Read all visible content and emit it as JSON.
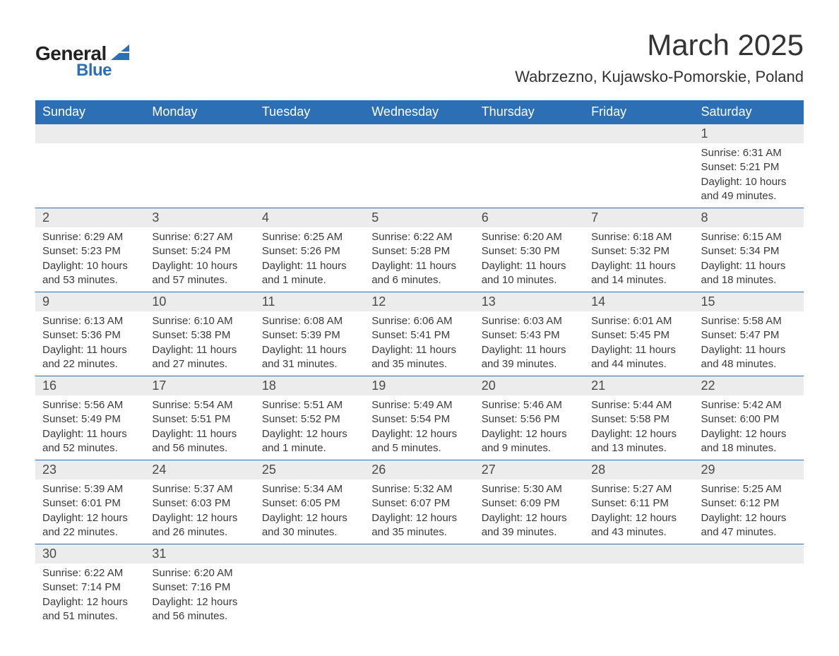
{
  "logo": {
    "text1": "General",
    "text2": "Blue",
    "accent_color": "#2d6fb5"
  },
  "title": "March 2025",
  "location": "Wabrzezno, Kujawsko-Pomorskie, Poland",
  "colors": {
    "header_bg": "#2d6fb5",
    "header_fg": "#ffffff",
    "daynum_bg": "#ececec",
    "row_border": "#2d6fb5",
    "text": "#3a3a3a"
  },
  "weekdays": [
    "Sunday",
    "Monday",
    "Tuesday",
    "Wednesday",
    "Thursday",
    "Friday",
    "Saturday"
  ],
  "weeks": [
    [
      {
        "empty": true
      },
      {
        "empty": true
      },
      {
        "empty": true
      },
      {
        "empty": true
      },
      {
        "empty": true
      },
      {
        "empty": true
      },
      {
        "day": "1",
        "sunrise": "Sunrise: 6:31 AM",
        "sunset": "Sunset: 5:21 PM",
        "daylight": "Daylight: 10 hours and 49 minutes."
      }
    ],
    [
      {
        "day": "2",
        "sunrise": "Sunrise: 6:29 AM",
        "sunset": "Sunset: 5:23 PM",
        "daylight": "Daylight: 10 hours and 53 minutes."
      },
      {
        "day": "3",
        "sunrise": "Sunrise: 6:27 AM",
        "sunset": "Sunset: 5:24 PM",
        "daylight": "Daylight: 10 hours and 57 minutes."
      },
      {
        "day": "4",
        "sunrise": "Sunrise: 6:25 AM",
        "sunset": "Sunset: 5:26 PM",
        "daylight": "Daylight: 11 hours and 1 minute."
      },
      {
        "day": "5",
        "sunrise": "Sunrise: 6:22 AM",
        "sunset": "Sunset: 5:28 PM",
        "daylight": "Daylight: 11 hours and 6 minutes."
      },
      {
        "day": "6",
        "sunrise": "Sunrise: 6:20 AM",
        "sunset": "Sunset: 5:30 PM",
        "daylight": "Daylight: 11 hours and 10 minutes."
      },
      {
        "day": "7",
        "sunrise": "Sunrise: 6:18 AM",
        "sunset": "Sunset: 5:32 PM",
        "daylight": "Daylight: 11 hours and 14 minutes."
      },
      {
        "day": "8",
        "sunrise": "Sunrise: 6:15 AM",
        "sunset": "Sunset: 5:34 PM",
        "daylight": "Daylight: 11 hours and 18 minutes."
      }
    ],
    [
      {
        "day": "9",
        "sunrise": "Sunrise: 6:13 AM",
        "sunset": "Sunset: 5:36 PM",
        "daylight": "Daylight: 11 hours and 22 minutes."
      },
      {
        "day": "10",
        "sunrise": "Sunrise: 6:10 AM",
        "sunset": "Sunset: 5:38 PM",
        "daylight": "Daylight: 11 hours and 27 minutes."
      },
      {
        "day": "11",
        "sunrise": "Sunrise: 6:08 AM",
        "sunset": "Sunset: 5:39 PM",
        "daylight": "Daylight: 11 hours and 31 minutes."
      },
      {
        "day": "12",
        "sunrise": "Sunrise: 6:06 AM",
        "sunset": "Sunset: 5:41 PM",
        "daylight": "Daylight: 11 hours and 35 minutes."
      },
      {
        "day": "13",
        "sunrise": "Sunrise: 6:03 AM",
        "sunset": "Sunset: 5:43 PM",
        "daylight": "Daylight: 11 hours and 39 minutes."
      },
      {
        "day": "14",
        "sunrise": "Sunrise: 6:01 AM",
        "sunset": "Sunset: 5:45 PM",
        "daylight": "Daylight: 11 hours and 44 minutes."
      },
      {
        "day": "15",
        "sunrise": "Sunrise: 5:58 AM",
        "sunset": "Sunset: 5:47 PM",
        "daylight": "Daylight: 11 hours and 48 minutes."
      }
    ],
    [
      {
        "day": "16",
        "sunrise": "Sunrise: 5:56 AM",
        "sunset": "Sunset: 5:49 PM",
        "daylight": "Daylight: 11 hours and 52 minutes."
      },
      {
        "day": "17",
        "sunrise": "Sunrise: 5:54 AM",
        "sunset": "Sunset: 5:51 PM",
        "daylight": "Daylight: 11 hours and 56 minutes."
      },
      {
        "day": "18",
        "sunrise": "Sunrise: 5:51 AM",
        "sunset": "Sunset: 5:52 PM",
        "daylight": "Daylight: 12 hours and 1 minute."
      },
      {
        "day": "19",
        "sunrise": "Sunrise: 5:49 AM",
        "sunset": "Sunset: 5:54 PM",
        "daylight": "Daylight: 12 hours and 5 minutes."
      },
      {
        "day": "20",
        "sunrise": "Sunrise: 5:46 AM",
        "sunset": "Sunset: 5:56 PM",
        "daylight": "Daylight: 12 hours and 9 minutes."
      },
      {
        "day": "21",
        "sunrise": "Sunrise: 5:44 AM",
        "sunset": "Sunset: 5:58 PM",
        "daylight": "Daylight: 12 hours and 13 minutes."
      },
      {
        "day": "22",
        "sunrise": "Sunrise: 5:42 AM",
        "sunset": "Sunset: 6:00 PM",
        "daylight": "Daylight: 12 hours and 18 minutes."
      }
    ],
    [
      {
        "day": "23",
        "sunrise": "Sunrise: 5:39 AM",
        "sunset": "Sunset: 6:01 PM",
        "daylight": "Daylight: 12 hours and 22 minutes."
      },
      {
        "day": "24",
        "sunrise": "Sunrise: 5:37 AM",
        "sunset": "Sunset: 6:03 PM",
        "daylight": "Daylight: 12 hours and 26 minutes."
      },
      {
        "day": "25",
        "sunrise": "Sunrise: 5:34 AM",
        "sunset": "Sunset: 6:05 PM",
        "daylight": "Daylight: 12 hours and 30 minutes."
      },
      {
        "day": "26",
        "sunrise": "Sunrise: 5:32 AM",
        "sunset": "Sunset: 6:07 PM",
        "daylight": "Daylight: 12 hours and 35 minutes."
      },
      {
        "day": "27",
        "sunrise": "Sunrise: 5:30 AM",
        "sunset": "Sunset: 6:09 PM",
        "daylight": "Daylight: 12 hours and 39 minutes."
      },
      {
        "day": "28",
        "sunrise": "Sunrise: 5:27 AM",
        "sunset": "Sunset: 6:11 PM",
        "daylight": "Daylight: 12 hours and 43 minutes."
      },
      {
        "day": "29",
        "sunrise": "Sunrise: 5:25 AM",
        "sunset": "Sunset: 6:12 PM",
        "daylight": "Daylight: 12 hours and 47 minutes."
      }
    ],
    [
      {
        "day": "30",
        "sunrise": "Sunrise: 6:22 AM",
        "sunset": "Sunset: 7:14 PM",
        "daylight": "Daylight: 12 hours and 51 minutes."
      },
      {
        "day": "31",
        "sunrise": "Sunrise: 6:20 AM",
        "sunset": "Sunset: 7:16 PM",
        "daylight": "Daylight: 12 hours and 56 minutes."
      },
      {
        "empty": true
      },
      {
        "empty": true
      },
      {
        "empty": true
      },
      {
        "empty": true
      },
      {
        "empty": true
      }
    ]
  ]
}
